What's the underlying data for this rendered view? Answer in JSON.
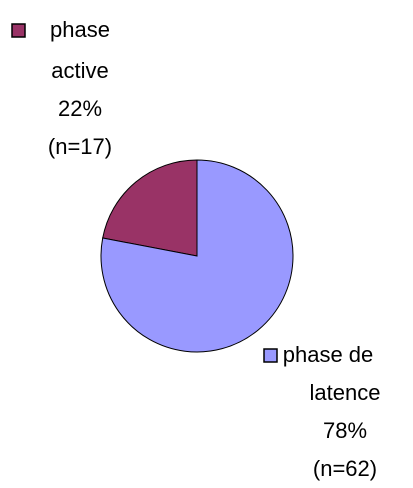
{
  "chart_data": {
    "type": "pie",
    "categories": [
      "phase active",
      "phase de latence"
    ],
    "category_lines": [
      [
        "phase",
        "active"
      ],
      [
        "phase de",
        "latence"
      ]
    ],
    "values": [
      22,
      78
    ],
    "value_labels": [
      "22%",
      "78%"
    ],
    "count_labels": [
      "(n=17)",
      "(n=62)"
    ],
    "colors": [
      "#993366",
      "#9999ff"
    ]
  }
}
